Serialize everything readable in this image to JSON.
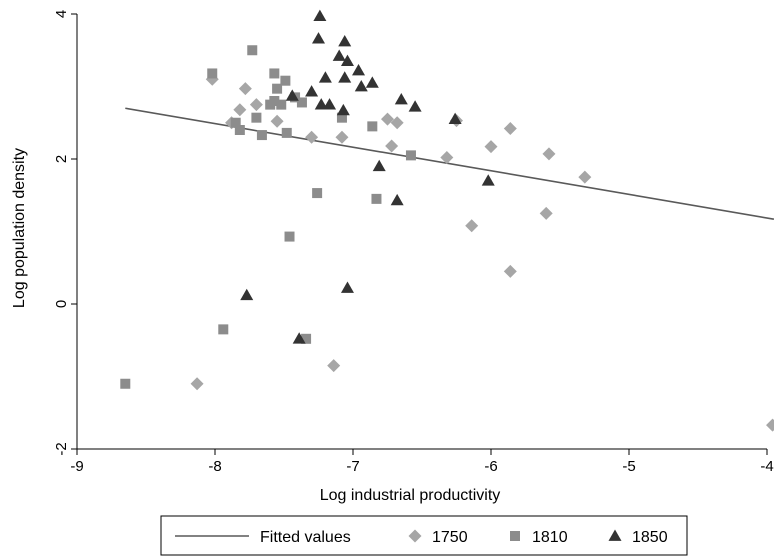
{
  "chart_data": {
    "type": "scatter",
    "title": "",
    "xlabel": "Log industrial productivity",
    "ylabel": "Log population density",
    "xlim": [
      -9,
      -4
    ],
    "ylim": [
      -2,
      4
    ],
    "xticks": [
      -9,
      -8,
      -7,
      -6,
      -5,
      -4
    ],
    "yticks": [
      -2,
      0,
      2,
      4
    ],
    "x_tick_labels": [
      "-9",
      "-8",
      "-7",
      "-6",
      "-5",
      "-4"
    ],
    "y_tick_labels": [
      "-2",
      "0",
      "2",
      "4"
    ],
    "grid": false,
    "legend_position": "bottom",
    "fitted_line": {
      "name": "Fitted values",
      "points": [
        [
          -8.65,
          2.7
        ],
        [
          -3.95,
          1.17
        ]
      ],
      "color": "#595959"
    },
    "series": [
      {
        "name": "1750",
        "marker": "diamond",
        "color": "#a6a6a6",
        "points": [
          [
            -8.02,
            3.1
          ],
          [
            -7.78,
            2.97
          ],
          [
            -7.7,
            2.75
          ],
          [
            -7.82,
            2.68
          ],
          [
            -7.88,
            2.5
          ],
          [
            -7.55,
            2.52
          ],
          [
            -7.3,
            2.3
          ],
          [
            -7.08,
            2.3
          ],
          [
            -6.75,
            2.55
          ],
          [
            -6.68,
            2.5
          ],
          [
            -6.72,
            2.18
          ],
          [
            -6.25,
            2.53
          ],
          [
            -6.32,
            2.02
          ],
          [
            -6.0,
            2.17
          ],
          [
            -5.86,
            2.42
          ],
          [
            -5.58,
            2.07
          ],
          [
            -5.32,
            1.75
          ],
          [
            -5.6,
            1.25
          ],
          [
            -6.14,
            1.08
          ],
          [
            -5.86,
            0.45
          ],
          [
            -7.14,
            -0.85
          ],
          [
            -8.13,
            -1.1
          ],
          [
            -3.96,
            -1.67
          ]
        ]
      },
      {
        "name": "1810",
        "marker": "square",
        "color": "#8c8c8c",
        "points": [
          [
            -8.02,
            3.18
          ],
          [
            -7.73,
            3.5
          ],
          [
            -7.57,
            3.18
          ],
          [
            -7.49,
            3.08
          ],
          [
            -7.55,
            2.97
          ],
          [
            -7.57,
            2.8
          ],
          [
            -7.6,
            2.75
          ],
          [
            -7.52,
            2.75
          ],
          [
            -7.42,
            2.85
          ],
          [
            -7.37,
            2.78
          ],
          [
            -7.7,
            2.57
          ],
          [
            -7.85,
            2.5
          ],
          [
            -7.82,
            2.4
          ],
          [
            -7.66,
            2.33
          ],
          [
            -7.48,
            2.36
          ],
          [
            -7.08,
            2.57
          ],
          [
            -6.86,
            2.45
          ],
          [
            -6.58,
            2.05
          ],
          [
            -7.26,
            1.53
          ],
          [
            -6.83,
            1.45
          ],
          [
            -7.46,
            0.93
          ],
          [
            -7.94,
            -0.35
          ],
          [
            -7.34,
            -0.48
          ],
          [
            -8.65,
            -1.1
          ]
        ]
      },
      {
        "name": "1850",
        "marker": "triangle",
        "color": "#333333",
        "points": [
          [
            -7.24,
            3.97
          ],
          [
            -7.25,
            3.66
          ],
          [
            -7.06,
            3.62
          ],
          [
            -7.1,
            3.42
          ],
          [
            -7.04,
            3.35
          ],
          [
            -6.96,
            3.22
          ],
          [
            -7.2,
            3.12
          ],
          [
            -7.06,
            3.12
          ],
          [
            -6.94,
            3.0
          ],
          [
            -6.86,
            3.05
          ],
          [
            -7.3,
            2.93
          ],
          [
            -7.44,
            2.87
          ],
          [
            -7.23,
            2.75
          ],
          [
            -7.17,
            2.75
          ],
          [
            -6.65,
            2.82
          ],
          [
            -6.55,
            2.72
          ],
          [
            -7.07,
            2.67
          ],
          [
            -6.26,
            2.55
          ],
          [
            -6.81,
            1.9
          ],
          [
            -6.02,
            1.7
          ],
          [
            -6.68,
            1.43
          ],
          [
            -7.04,
            0.22
          ],
          [
            -7.77,
            0.12
          ],
          [
            -7.39,
            -0.48
          ]
        ]
      }
    ]
  }
}
